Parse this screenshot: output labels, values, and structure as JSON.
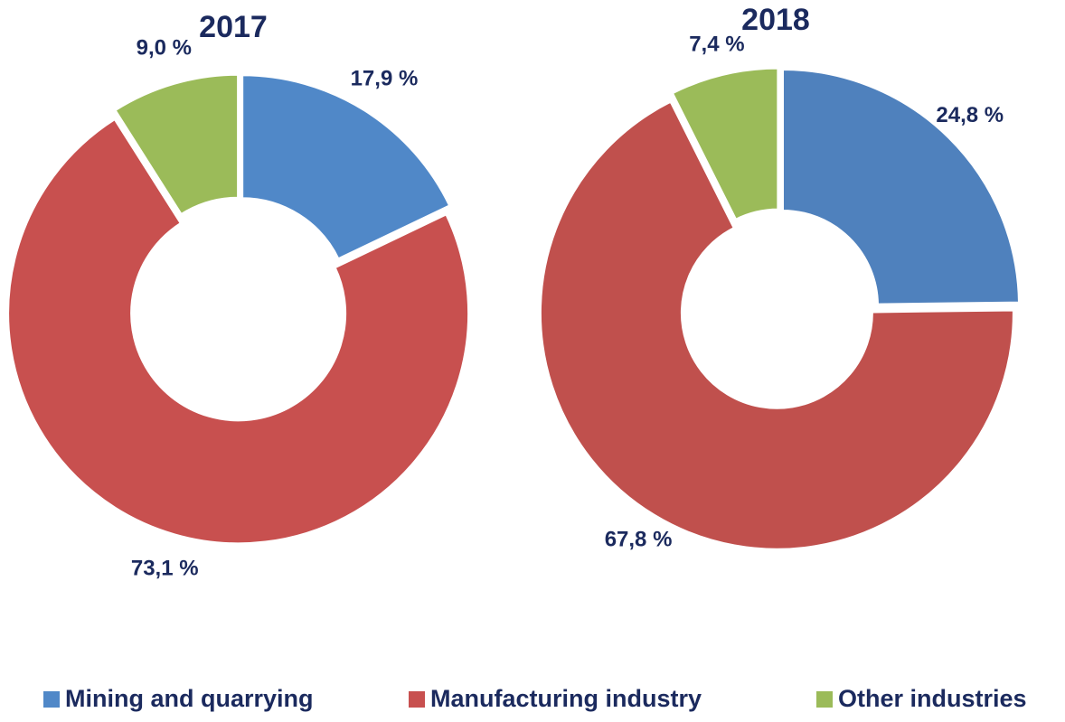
{
  "chart_data": [
    {
      "type": "pie",
      "title": "2017",
      "categories": [
        "Mining and quarrying",
        "Manufacturing industry",
        "Other industries"
      ],
      "values": [
        17.9,
        73.1,
        9.0
      ],
      "value_labels": [
        "17,9 %",
        "73,1 %",
        "9,0 %"
      ],
      "colors": [
        "#5088c8",
        "#c8504f",
        "#9bbb59"
      ]
    },
    {
      "type": "pie",
      "title": "2018",
      "categories": [
        "Mining and quarrying",
        "Manufacturing industry",
        "Other industries"
      ],
      "values": [
        24.8,
        67.8,
        7.4
      ],
      "value_labels": [
        "24,8 %",
        "67,8 %",
        "7,4 %"
      ],
      "colors": [
        "#4f81bd",
        "#c0504d",
        "#9bbb59"
      ]
    }
  ]
}
